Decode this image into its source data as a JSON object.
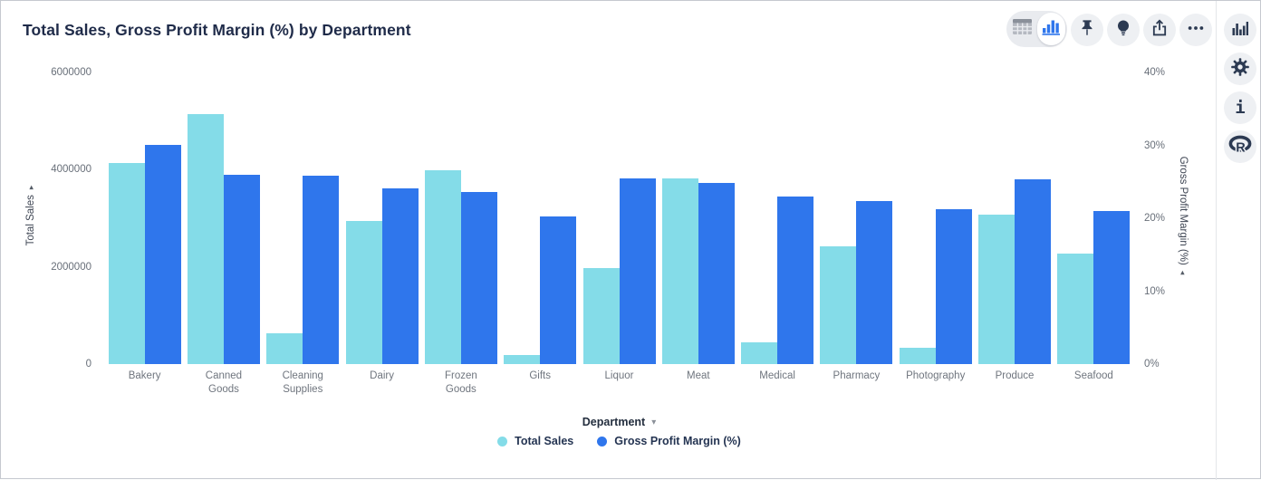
{
  "title": "Total Sales, Gross Profit Margin (%) by Department",
  "colors": {
    "total_sales": "#84DCE8",
    "gross_profit_margin": "#2F76EC",
    "title_text": "#1f2b49",
    "tick_text": "#686f79",
    "toolbar_icon": "#2c3a52",
    "accent_blue": "#2F76EC"
  },
  "toolbar": {
    "icons": [
      "table-view-icon",
      "chart-view-icon",
      "pin-icon",
      "lightbulb-icon",
      "export-icon",
      "ellipsis-icon"
    ],
    "selected_view": "chart"
  },
  "rail": {
    "icons": [
      "chart-bars-icon",
      "gear-icon",
      "info-icon",
      "r-logo-icon"
    ]
  },
  "chart_data": {
    "type": "bar",
    "title": "Total Sales, Gross Profit Margin (%) by Department",
    "xlabel": "Department",
    "categories": [
      "Bakery",
      "Canned Goods",
      "Cleaning Supplies",
      "Dairy",
      "Frozen Goods",
      "Gifts",
      "Liquor",
      "Meat",
      "Medical",
      "Pharmacy",
      "Photography",
      "Produce",
      "Seafood"
    ],
    "category_label_lines": [
      [
        "Bakery"
      ],
      [
        "Canned",
        "Goods"
      ],
      [
        "Cleaning",
        "Supplies"
      ],
      [
        "Dairy"
      ],
      [
        "Frozen",
        "Goods"
      ],
      [
        "Gifts"
      ],
      [
        "Liquor"
      ],
      [
        "Meat"
      ],
      [
        "Medical"
      ],
      [
        "Pharmacy"
      ],
      [
        "Photography"
      ],
      [
        "Produce"
      ],
      [
        "Seafood"
      ]
    ],
    "series": [
      {
        "name": "Total Sales",
        "axis": "left",
        "color": "#84DCE8",
        "values": [
          4130000,
          5140000,
          630000,
          2940000,
          3990000,
          190000,
          1980000,
          3820000,
          450000,
          2430000,
          340000,
          3070000,
          2280000
        ]
      },
      {
        "name": "Gross Profit Margin (%)",
        "axis": "right",
        "color": "#2F76EC",
        "values": [
          30.1,
          26.0,
          25.8,
          24.1,
          23.6,
          20.2,
          25.5,
          24.9,
          23.0,
          22.4,
          21.2,
          25.4,
          21.0
        ]
      }
    ],
    "left_axis": {
      "label": "Total Sales",
      "max": 6000000,
      "ticks": [
        {
          "v": 0,
          "label": "0"
        },
        {
          "v": 2000000,
          "label": "2000000"
        },
        {
          "v": 4000000,
          "label": "4000000"
        },
        {
          "v": 6000000,
          "label": "6000000"
        }
      ]
    },
    "right_axis": {
      "label": "Gross Profit Margin (%)",
      "max": 40,
      "ticks": [
        {
          "v": 0,
          "label": "0%"
        },
        {
          "v": 10,
          "label": "10%"
        },
        {
          "v": 20,
          "label": "20%"
        },
        {
          "v": 30,
          "label": "30%"
        },
        {
          "v": 40,
          "label": "40%"
        }
      ]
    },
    "legend": [
      "Total Sales",
      "Gross Profit Margin (%)"
    ],
    "legend_position": "bottom",
    "grid": false
  }
}
